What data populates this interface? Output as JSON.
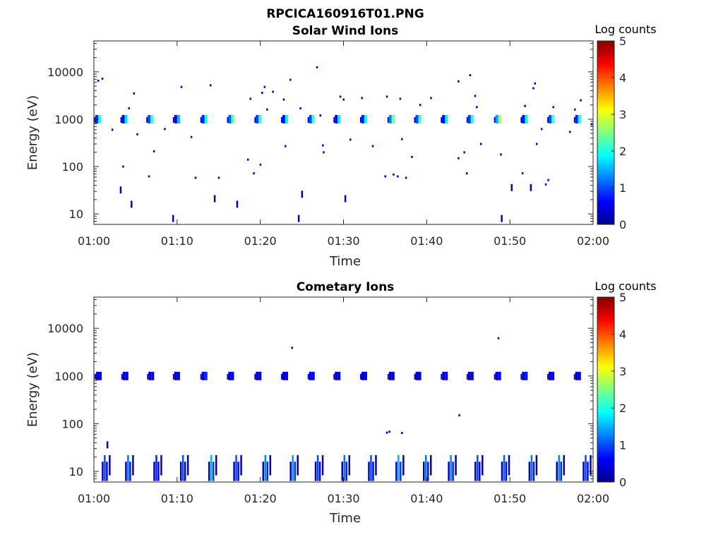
{
  "figure": {
    "filename": "RPCICA160916T01.PNG"
  },
  "chart_data": [
    {
      "type": "heatmap",
      "title": "Solar Wind Ions",
      "xlabel": "Time",
      "ylabel": "Energy (eV)",
      "x_ticks": [
        "01:00",
        "01:10",
        "01:20",
        "01:30",
        "01:40",
        "01:50",
        "02:00"
      ],
      "y_ticks": [
        "10",
        "100",
        "1000",
        "10000"
      ],
      "yscale": "log",
      "xlim": [
        "01:00",
        "02:00"
      ],
      "ylim": [
        6,
        45000
      ],
      "colorbar": {
        "label": "Log counts",
        "ticks": [
          "0",
          "1",
          "2",
          "3",
          "4",
          "5"
        ],
        "range": [
          0,
          5
        ],
        "colormap": "jet"
      },
      "bands": [
        {
          "t_min": 0.5,
          "energy": 1000,
          "log_counts": 2.0
        },
        {
          "t_min": 3.7,
          "energy": 1000,
          "log_counts": 1.8
        },
        {
          "t_min": 6.8,
          "energy": 1000,
          "log_counts": 2.2
        },
        {
          "t_min": 10.0,
          "energy": 1000,
          "log_counts": 1.5
        },
        {
          "t_min": 13.3,
          "energy": 1000,
          "log_counts": 2.0
        },
        {
          "t_min": 16.5,
          "energy": 1000,
          "log_counts": 2.3
        },
        {
          "t_min": 19.8,
          "energy": 1000,
          "log_counts": 2.1
        },
        {
          "t_min": 23.0,
          "energy": 1000,
          "log_counts": 1.9
        },
        {
          "t_min": 26.2,
          "energy": 1000,
          "log_counts": 2.2
        },
        {
          "t_min": 29.3,
          "energy": 1000,
          "log_counts": 1.8
        },
        {
          "t_min": 32.5,
          "energy": 1000,
          "log_counts": 2.0
        },
        {
          "t_min": 35.8,
          "energy": 1000,
          "log_counts": 2.5
        },
        {
          "t_min": 39.0,
          "energy": 1000,
          "log_counts": 2.2
        },
        {
          "t_min": 42.2,
          "energy": 1000,
          "log_counts": 1.8
        },
        {
          "t_min": 45.3,
          "energy": 1000,
          "log_counts": 2.1
        },
        {
          "t_min": 48.6,
          "energy": 1000,
          "log_counts": 2.6
        },
        {
          "t_min": 51.8,
          "energy": 1000,
          "log_counts": 1.9
        },
        {
          "t_min": 55.0,
          "energy": 1000,
          "log_counts": 2.2
        },
        {
          "t_min": 58.2,
          "energy": 1000,
          "log_counts": 2.0
        }
      ],
      "points": [
        {
          "t_min": 0.5,
          "energy": 6500
        },
        {
          "t_min": 1.0,
          "energy": 7200
        },
        {
          "t_min": 2.2,
          "energy": 600
        },
        {
          "t_min": 3.2,
          "energy": 32
        },
        {
          "t_min": 3.5,
          "energy": 100
        },
        {
          "t_min": 4.2,
          "energy": 1700
        },
        {
          "t_min": 4.5,
          "energy": 16
        },
        {
          "t_min": 4.8,
          "energy": 3500
        },
        {
          "t_min": 5.2,
          "energy": 480
        },
        {
          "t_min": 6.6,
          "energy": 62
        },
        {
          "t_min": 7.2,
          "energy": 210
        },
        {
          "t_min": 8.5,
          "energy": 620
        },
        {
          "t_min": 9.5,
          "energy": 8
        },
        {
          "t_min": 10.5,
          "energy": 4800
        },
        {
          "t_min": 11.7,
          "energy": 420
        },
        {
          "t_min": 12.2,
          "energy": 58
        },
        {
          "t_min": 14.0,
          "energy": 5200
        },
        {
          "t_min": 14.5,
          "energy": 21
        },
        {
          "t_min": 15.0,
          "energy": 58
        },
        {
          "t_min": 17.2,
          "energy": 16
        },
        {
          "t_min": 18.5,
          "energy": 140
        },
        {
          "t_min": 18.8,
          "energy": 2700
        },
        {
          "t_min": 19.2,
          "energy": 72
        },
        {
          "t_min": 20.0,
          "energy": 110
        },
        {
          "t_min": 20.2,
          "energy": 3600
        },
        {
          "t_min": 20.5,
          "energy": 4800
        },
        {
          "t_min": 20.8,
          "energy": 1600
        },
        {
          "t_min": 21.5,
          "energy": 3800
        },
        {
          "t_min": 22.8,
          "energy": 2600
        },
        {
          "t_min": 23.0,
          "energy": 270
        },
        {
          "t_min": 23.6,
          "energy": 6800
        },
        {
          "t_min": 24.6,
          "energy": 8
        },
        {
          "t_min": 25.0,
          "energy": 26
        },
        {
          "t_min": 24.8,
          "energy": 1700
        },
        {
          "t_min": 26.8,
          "energy": 12500
        },
        {
          "t_min": 27.2,
          "energy": 1200
        },
        {
          "t_min": 27.5,
          "energy": 280
        },
        {
          "t_min": 27.6,
          "energy": 200
        },
        {
          "t_min": 29.6,
          "energy": 3000
        },
        {
          "t_min": 30.0,
          "energy": 2600
        },
        {
          "t_min": 30.2,
          "energy": 21
        },
        {
          "t_min": 30.8,
          "energy": 370
        },
        {
          "t_min": 32.2,
          "energy": 2800
        },
        {
          "t_min": 33.5,
          "energy": 270
        },
        {
          "t_min": 35.0,
          "energy": 62
        },
        {
          "t_min": 35.2,
          "energy": 3000
        },
        {
          "t_min": 36.0,
          "energy": 68
        },
        {
          "t_min": 36.5,
          "energy": 62
        },
        {
          "t_min": 36.8,
          "energy": 2700
        },
        {
          "t_min": 37.0,
          "energy": 380
        },
        {
          "t_min": 37.5,
          "energy": 58
        },
        {
          "t_min": 38.2,
          "energy": 160
        },
        {
          "t_min": 39.2,
          "energy": 2000
        },
        {
          "t_min": 40.5,
          "energy": 2800
        },
        {
          "t_min": 43.8,
          "energy": 6300
        },
        {
          "t_min": 43.8,
          "energy": 150
        },
        {
          "t_min": 44.5,
          "energy": 200
        },
        {
          "t_min": 44.8,
          "energy": 72
        },
        {
          "t_min": 45.2,
          "energy": 8500
        },
        {
          "t_min": 45.8,
          "energy": 3100
        },
        {
          "t_min": 46.0,
          "energy": 1800
        },
        {
          "t_min": 46.5,
          "energy": 300
        },
        {
          "t_min": 49.0,
          "energy": 8
        },
        {
          "t_min": 48.9,
          "energy": 180
        },
        {
          "t_min": 50.2,
          "energy": 36
        },
        {
          "t_min": 51.5,
          "energy": 72
        },
        {
          "t_min": 51.8,
          "energy": 1900
        },
        {
          "t_min": 52.5,
          "energy": 36
        },
        {
          "t_min": 52.8,
          "energy": 4500
        },
        {
          "t_min": 53.0,
          "energy": 5700
        },
        {
          "t_min": 53.2,
          "energy": 300
        },
        {
          "t_min": 53.8,
          "energy": 620
        },
        {
          "t_min": 54.3,
          "energy": 42
        },
        {
          "t_min": 54.6,
          "energy": 52
        },
        {
          "t_min": 55.2,
          "energy": 1800
        },
        {
          "t_min": 57.2,
          "energy": 540
        },
        {
          "t_min": 57.8,
          "energy": 1600
        },
        {
          "t_min": 58.5,
          "energy": 2500
        },
        {
          "t_min": 59.8,
          "energy": 780
        }
      ]
    },
    {
      "type": "heatmap",
      "title": "Cometary Ions",
      "xlabel": "Time",
      "ylabel": "Energy (eV)",
      "x_ticks": [
        "01:00",
        "01:10",
        "01:20",
        "01:30",
        "01:40",
        "01:50",
        "02:00"
      ],
      "y_ticks": [
        "10",
        "100",
        "1000",
        "10000"
      ],
      "yscale": "log",
      "xlim": [
        "01:00",
        "02:00"
      ],
      "ylim": [
        6,
        45000
      ],
      "colorbar": {
        "label": "Log counts",
        "ticks": [
          "0",
          "1",
          "2",
          "3",
          "4",
          "5"
        ],
        "range": [
          0,
          5
        ],
        "colormap": "jet"
      },
      "bands": [
        {
          "t_min": 0.6,
          "energy": 1000,
          "log_counts": 0.6
        },
        {
          "t_min": 3.8,
          "energy": 1000,
          "log_counts": 0.5
        },
        {
          "t_min": 6.9,
          "energy": 1000,
          "log_counts": 0.6
        },
        {
          "t_min": 10.0,
          "energy": 1000,
          "log_counts": 0.5
        },
        {
          "t_min": 13.3,
          "energy": 1000,
          "log_counts": 0.8
        },
        {
          "t_min": 16.5,
          "energy": 1000,
          "log_counts": 0.6
        },
        {
          "t_min": 19.8,
          "energy": 1000,
          "log_counts": 0.5
        },
        {
          "t_min": 23.0,
          "energy": 1000,
          "log_counts": 0.5
        },
        {
          "t_min": 26.2,
          "energy": 1000,
          "log_counts": 0.6
        },
        {
          "t_min": 29.3,
          "energy": 1000,
          "log_counts": 0.5
        },
        {
          "t_min": 32.5,
          "energy": 1000,
          "log_counts": 0.6
        },
        {
          "t_min": 35.8,
          "energy": 1000,
          "log_counts": 0.6
        },
        {
          "t_min": 39.0,
          "energy": 1000,
          "log_counts": 0.5
        },
        {
          "t_min": 42.2,
          "energy": 1000,
          "log_counts": 0.6
        },
        {
          "t_min": 45.3,
          "energy": 1000,
          "log_counts": 0.5
        },
        {
          "t_min": 48.6,
          "energy": 1000,
          "log_counts": 0.6
        },
        {
          "t_min": 51.8,
          "energy": 1000,
          "log_counts": 0.7
        },
        {
          "t_min": 55.0,
          "energy": 1000,
          "log_counts": 0.5
        },
        {
          "t_min": 58.2,
          "energy": 1000,
          "log_counts": 0.6
        }
      ],
      "low_energy_bursts": [
        {
          "t_min": 1.2,
          "log_counts": 1.0
        },
        {
          "t_min": 4.0,
          "log_counts": 1.2
        },
        {
          "t_min": 7.4,
          "log_counts": 0.8
        },
        {
          "t_min": 10.6,
          "log_counts": 1.0
        },
        {
          "t_min": 14.0,
          "log_counts": 1.5
        },
        {
          "t_min": 17.0,
          "log_counts": 1.0
        },
        {
          "t_min": 20.5,
          "log_counts": 1.3
        },
        {
          "t_min": 23.8,
          "log_counts": 1.4
        },
        {
          "t_min": 26.8,
          "log_counts": 1.0
        },
        {
          "t_min": 30.0,
          "log_counts": 1.2
        },
        {
          "t_min": 33.2,
          "log_counts": 1.0
        },
        {
          "t_min": 36.5,
          "log_counts": 1.5
        },
        {
          "t_min": 39.8,
          "log_counts": 1.2
        },
        {
          "t_min": 42.8,
          "log_counts": 1.3
        },
        {
          "t_min": 46.0,
          "log_counts": 1.0
        },
        {
          "t_min": 49.2,
          "log_counts": 1.1
        },
        {
          "t_min": 52.5,
          "log_counts": 1.2
        },
        {
          "t_min": 55.8,
          "log_counts": 1.3
        },
        {
          "t_min": 59.0,
          "log_counts": 1.0
        }
      ],
      "points": [
        {
          "t_min": 1.6,
          "energy": 36
        },
        {
          "t_min": 23.8,
          "energy": 3900
        },
        {
          "t_min": 35.2,
          "energy": 65
        },
        {
          "t_min": 35.5,
          "energy": 68
        },
        {
          "t_min": 37.0,
          "energy": 64
        },
        {
          "t_min": 43.9,
          "energy": 150
        },
        {
          "t_min": 48.6,
          "energy": 6200
        }
      ]
    }
  ]
}
